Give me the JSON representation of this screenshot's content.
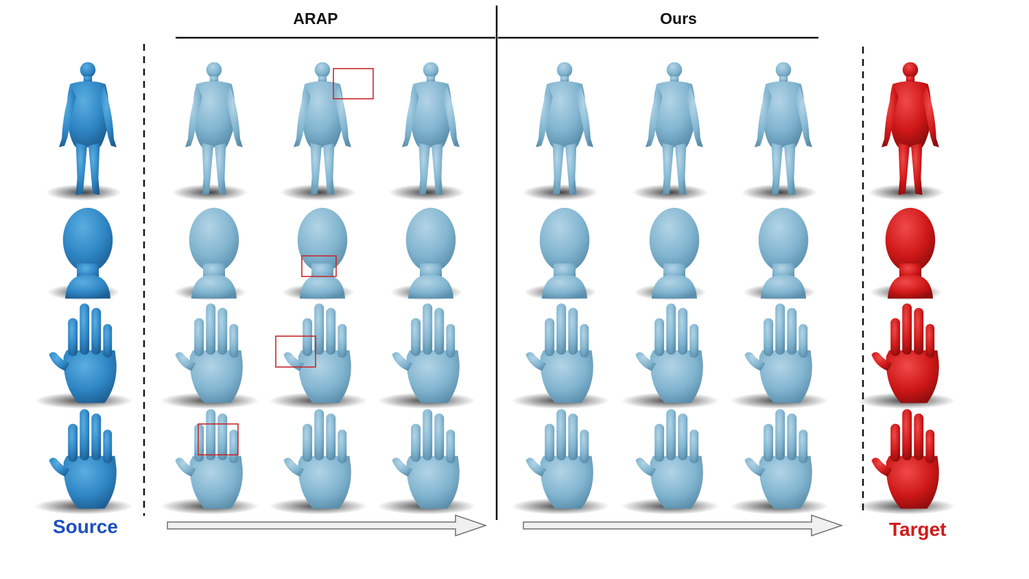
{
  "headers": {
    "baseline": "ARAP",
    "method": "Ours"
  },
  "labels": {
    "source": "Source",
    "target": "Target"
  },
  "colors": {
    "source_mesh": "#2f86c5",
    "source_label": "#1f4fbf",
    "result_mesh": "#7fb3cf",
    "target_mesh": "#cf1818",
    "target_label": "#d21a1a",
    "highlight_box": "#c62828",
    "arrow_fill": "#f0f0f0",
    "arrow_stroke": "#6f6f6f"
  },
  "rows": [
    {
      "shape": "body-mesh-icon",
      "highlight_frame": 1
    },
    {
      "shape": "head-mesh-icon",
      "highlight_frame": 1
    },
    {
      "shape": "hand-mesh-icon",
      "highlight_frame": 1
    },
    {
      "shape": "hand-mesh-icon",
      "highlight_frame": 0
    }
  ],
  "frames_per_method": 3
}
